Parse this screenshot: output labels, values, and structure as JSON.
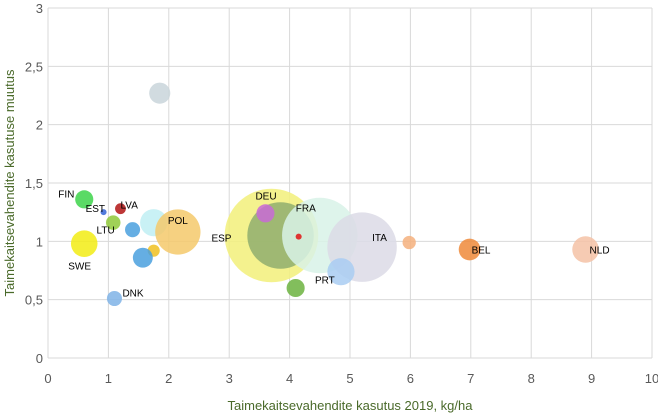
{
  "chart_data": {
    "type": "scatter",
    "subtype": "bubble",
    "xlabel": "Taimekaitsevahendite kasutus 2019, kg/ha",
    "ylabel": "Taimekaitsevahendite kasutuse muutus",
    "xlim": [
      0,
      10
    ],
    "ylim": [
      0,
      3
    ],
    "x_ticks": [
      "0",
      "1",
      "2",
      "3",
      "4",
      "5",
      "6",
      "7",
      "8",
      "9",
      "10"
    ],
    "y_ticks": [
      "0",
      "0,5",
      "1",
      "1,5",
      "2",
      "2,5",
      "3"
    ],
    "grid": true,
    "legend": "none",
    "points": [
      {
        "label": "",
        "x": 1.85,
        "y": 2.27,
        "size": 0.35,
        "color": "#c9d5db"
      },
      {
        "label": "FIN",
        "x": 0.6,
        "y": 1.36,
        "size": 0.3,
        "color": "#3dd44a"
      },
      {
        "label": "EST",
        "x": 0.92,
        "y": 1.25,
        "size": 0.1,
        "color": "#3464d6"
      },
      {
        "label": "LVA",
        "x": 1.2,
        "y": 1.28,
        "size": 0.18,
        "color": "#b21414"
      },
      {
        "label": "",
        "x": 1.08,
        "y": 1.16,
        "size": 0.24,
        "color": "#8fc93a"
      },
      {
        "label": "LTU",
        "x": 1.4,
        "y": 1.1,
        "size": 0.25,
        "color": "#4aa0de"
      },
      {
        "label": "",
        "x": 1.75,
        "y": 1.16,
        "size": 0.45,
        "color": "#bfeef3"
      },
      {
        "label": "POL",
        "x": 2.15,
        "y": 1.08,
        "size": 0.75,
        "color": "#f5c96b"
      },
      {
        "label": "",
        "x": 1.75,
        "y": 0.92,
        "size": 0.2,
        "color": "#f0c020"
      },
      {
        "label": "SWE",
        "x": 0.6,
        "y": 0.98,
        "size": 0.44,
        "color": "#f2ec14"
      },
      {
        "label": "",
        "x": 1.57,
        "y": 0.86,
        "size": 0.33,
        "color": "#4aa0de"
      },
      {
        "label": "DNK",
        "x": 1.1,
        "y": 0.51,
        "size": 0.25,
        "color": "#7fb3e6"
      },
      {
        "label": "ESP",
        "x": 3.7,
        "y": 1.05,
        "size": 1.55,
        "color": "#f2f07a"
      },
      {
        "label": "",
        "x": 3.85,
        "y": 1.05,
        "size": 1.1,
        "color": "#8fae6e"
      },
      {
        "label": "DEU",
        "x": 3.6,
        "y": 1.24,
        "size": 0.3,
        "color": "#c86ad6"
      },
      {
        "label": "FRA",
        "x": 4.5,
        "y": 1.05,
        "size": 1.25,
        "color": "#d8f2e8"
      },
      {
        "label": "",
        "x": 4.15,
        "y": 1.04,
        "size": 0.1,
        "color": "#e01414"
      },
      {
        "label": "ITA",
        "x": 5.2,
        "y": 0.95,
        "size": 1.15,
        "color": "#dcdbe6"
      },
      {
        "label": "PRT",
        "x": 4.85,
        "y": 0.74,
        "size": 0.45,
        "color": "#a9cdf2"
      },
      {
        "label": "",
        "x": 4.1,
        "y": 0.6,
        "size": 0.3,
        "color": "#6cb33f"
      },
      {
        "label": "",
        "x": 5.98,
        "y": 0.99,
        "size": 0.22,
        "color": "#f5b07e"
      },
      {
        "label": "BEL",
        "x": 6.98,
        "y": 0.93,
        "size": 0.36,
        "color": "#ef8a3a"
      },
      {
        "label": "NLD",
        "x": 8.9,
        "y": 0.93,
        "size": 0.44,
        "color": "#f5c2a6"
      }
    ]
  }
}
